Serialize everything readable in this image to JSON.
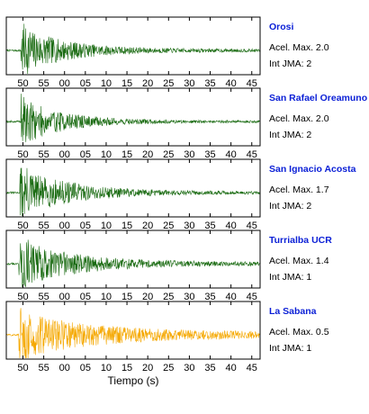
{
  "chart_data": {
    "type": "line",
    "xlabel": "Tiempo (s)",
    "tick_labels": [
      "50",
      "55",
      "00",
      "05",
      "10",
      "15",
      "20",
      "25",
      "30",
      "35",
      "40",
      "45"
    ],
    "x_range": [
      46,
      107
    ],
    "grid": false,
    "series": [
      {
        "name": "Orosi",
        "accel_label": "Acel. Max. 2.0",
        "jma_label": "Int JMA: 2",
        "color": "#1a6b12",
        "decay": 11,
        "onset": 49.5,
        "floor": 0.06,
        "seed": 7
      },
      {
        "name": "San Rafael Oreamuno",
        "accel_label": "Acel. Max. 2.0",
        "jma_label": "Int JMA: 2",
        "color": "#1a6b12",
        "decay": 10,
        "onset": 49.5,
        "floor": 0.05,
        "seed": 19
      },
      {
        "name": "San Ignacio Acosta",
        "accel_label": "Acel. Max. 1.7",
        "jma_label": "Int JMA: 2",
        "color": "#1a6b12",
        "decay": 13,
        "onset": 49.3,
        "floor": 0.05,
        "seed": 31
      },
      {
        "name": "Turrialba UCR",
        "accel_label": "Acel. Max. 1.4",
        "jma_label": "Int JMA: 1",
        "color": "#1a6b12",
        "decay": 14,
        "onset": 49.0,
        "floor": 0.07,
        "seed": 43
      },
      {
        "name": "La Sabana",
        "accel_label": "Acel. Max. 0.5",
        "jma_label": "Int JMA: 1",
        "color": "#f5a800",
        "decay": 18,
        "onset": 49.0,
        "floor": 0.12,
        "seed": 57
      }
    ]
  }
}
